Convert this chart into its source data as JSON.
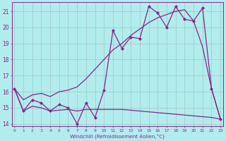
{
  "xlabel": "Windchill (Refroidissement éolien,°C)",
  "background_color": "#b2eded",
  "line_color": "#882288",
  "hours": [
    0,
    1,
    2,
    3,
    4,
    5,
    6,
    7,
    8,
    9,
    10,
    11,
    12,
    13,
    14,
    15,
    16,
    17,
    18,
    19,
    20,
    21,
    22,
    23
  ],
  "line_zigzag": [
    16.2,
    14.8,
    15.5,
    15.3,
    14.8,
    15.2,
    15.0,
    14.0,
    15.3,
    14.4,
    16.1,
    19.8,
    18.7,
    19.4,
    19.3,
    21.3,
    20.9,
    20.0,
    21.3,
    20.5,
    20.4,
    21.2,
    16.2,
    14.3
  ],
  "line_smooth": [
    16.2,
    15.5,
    15.8,
    15.9,
    15.7,
    16.0,
    16.1,
    16.3,
    16.8,
    17.4,
    18.0,
    18.6,
    19.0,
    19.5,
    19.9,
    20.3,
    20.6,
    20.8,
    21.0,
    21.1,
    20.4,
    18.8,
    16.2,
    14.3
  ],
  "line_flat": [
    16.2,
    14.8,
    15.1,
    15.0,
    14.8,
    14.85,
    14.9,
    14.8,
    14.9,
    14.9,
    14.9,
    14.9,
    14.9,
    14.85,
    14.8,
    14.75,
    14.7,
    14.65,
    14.6,
    14.55,
    14.5,
    14.45,
    14.4,
    14.3
  ],
  "ylim_min": 13.85,
  "ylim_max": 21.55,
  "yticks": [
    14,
    15,
    16,
    17,
    18,
    19,
    20,
    21
  ]
}
